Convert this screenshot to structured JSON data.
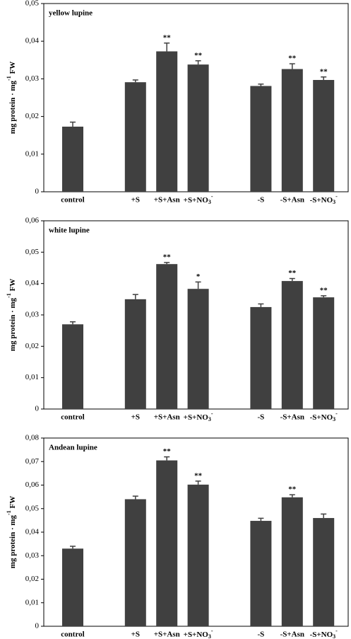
{
  "chart_data": [
    {
      "type": "bar",
      "title": "yellow lupine",
      "y_label": "mg protein · mg-1 FW",
      "color": "#404040",
      "categories": [
        "control",
        null,
        "+S",
        "+S+Asn",
        "+S+NO3-",
        null,
        "-S",
        "-S+Asn",
        "-S+NO3-"
      ],
      "values": [
        0.0173,
        null,
        0.0291,
        0.0373,
        0.0338,
        null,
        0.0281,
        0.0326,
        0.0297
      ],
      "errors": [
        0.0012,
        null,
        0.0006,
        0.0022,
        0.001,
        null,
        0.0005,
        0.0014,
        0.0008
      ],
      "significance": [
        null,
        null,
        null,
        "**",
        "**",
        null,
        null,
        "**",
        "**"
      ],
      "ylim": [
        0,
        0.05
      ],
      "yticks": [
        0,
        {
          "value": 0.01,
          "label": "0,01"
        },
        {
          "value": 0.02,
          "label": "0,02"
        },
        {
          "value": 0.03,
          "label": "0,03"
        },
        {
          "value": 0.04,
          "label": "0,04"
        },
        {
          "value": 0.05,
          "label": "0,05"
        }
      ]
    },
    {
      "type": "bar",
      "title": "white lupine",
      "y_label": "mg protein · mg-1 FW",
      "color": "#404040",
      "categories": [
        "control",
        null,
        "+S",
        "+S+Asn",
        "+S+NO3-",
        null,
        "-S",
        "-S+Asn",
        "-S+NO3-"
      ],
      "values": [
        0.027,
        null,
        0.035,
        0.0462,
        0.0383,
        null,
        0.0325,
        0.0408,
        0.0356
      ],
      "errors": [
        0.0008,
        null,
        0.0015,
        0.0005,
        0.0022,
        null,
        0.001,
        0.0008,
        0.0005
      ],
      "significance": [
        null,
        null,
        null,
        "**",
        "*",
        null,
        null,
        "**",
        "**"
      ],
      "ylim": [
        0,
        0.06
      ],
      "yticks": [
        0,
        {
          "value": 0.01,
          "label": "0,01"
        },
        {
          "value": 0.02,
          "label": "0,02"
        },
        {
          "value": 0.03,
          "label": "0,03"
        },
        {
          "value": 0.04,
          "label": "0,04"
        },
        {
          "value": 0.05,
          "label": "0,05"
        },
        {
          "value": 0.06,
          "label": "0,06"
        }
      ]
    },
    {
      "type": "bar",
      "title": "Andean lupine",
      "y_label": "mg protein · mg-1 FW",
      "color": "#404040",
      "categories": [
        "control",
        null,
        "+S",
        "+S+Asn",
        "+S+NO3-",
        null,
        "-S",
        "-S+Asn",
        "-S+NO3-"
      ],
      "values": [
        0.033,
        null,
        0.054,
        0.0705,
        0.0602,
        null,
        0.0448,
        0.0548,
        0.046
      ],
      "errors": [
        0.001,
        null,
        0.0013,
        0.0015,
        0.0015,
        null,
        0.0011,
        0.0011,
        0.0017
      ],
      "significance": [
        null,
        null,
        null,
        "**",
        "**",
        null,
        null,
        "**",
        null
      ],
      "ylim": [
        0,
        0.08
      ],
      "yticks": [
        0,
        {
          "value": 0.01,
          "label": "0,01"
        },
        {
          "value": 0.02,
          "label": "0,02"
        },
        {
          "value": 0.03,
          "label": "0,03"
        },
        {
          "value": 0.04,
          "label": "0,04"
        },
        {
          "value": 0.05,
          "label": "0,05"
        },
        {
          "value": 0.06,
          "label": "0,06"
        },
        {
          "value": 0.07,
          "label": "0,07"
        },
        {
          "value": 0.08,
          "label": "0,08"
        }
      ]
    }
  ]
}
